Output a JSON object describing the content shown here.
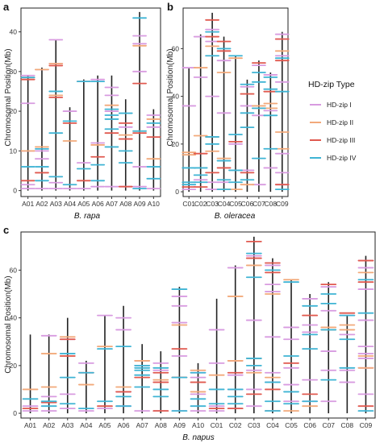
{
  "colors": {
    "HD-zip I": "#d89be0",
    "HD-zip II": "#f2a97a",
    "HD-zip III": "#e0594f",
    "HD-zip IV": "#3fb4d4",
    "chromosome": "#222222",
    "panel_bg": "#ffffff",
    "panel_border": "#222222"
  },
  "legend": {
    "title": "HD-zip Type",
    "items": [
      "HD-zip I",
      "HD-zip II",
      "HD-zip III",
      "HD-zip IV"
    ]
  },
  "chart_data": [
    {
      "panel": "a",
      "type": "chromosome-map",
      "xlabel": "B. rapa",
      "ylabel": "Chromosomal Position(Mb)",
      "ylim": [
        -1.5,
        46
      ],
      "yticks": [
        0,
        10,
        20,
        30,
        40
      ],
      "categories": [
        "A01",
        "A02",
        "A03",
        "A04",
        "A05",
        "A06",
        "A07",
        "A08",
        "A09",
        "A10"
      ],
      "lengths": [
        29,
        31,
        38,
        21,
        28,
        29,
        29,
        23,
        45,
        20.5
      ],
      "genes": {
        "HD-zip I": [
          [
            0.5,
            1.5,
            10,
            22,
            29
          ],
          [
            0.5,
            8,
            10,
            30.5
          ],
          [
            0.5,
            2,
            32,
            38
          ],
          [
            0.5,
            20
          ],
          [
            0.5,
            7,
            27.5
          ],
          [
            1,
            12,
            28
          ],
          [
            1,
            20,
            24,
            26
          ],
          [
            1,
            16
          ],
          [
            1,
            6,
            30,
            37,
            39
          ],
          [
            0.5,
            16,
            19
          ]
        ],
        "HD-zip II": [
          [
            10,
            28.5
          ],
          [
            11,
            30.5
          ],
          [
            24,
            32
          ],
          [
            12.5
          ],
          [
            27.5
          ],
          [
            11.5
          ],
          [
            21.5
          ],
          [
            14
          ],
          [
            15,
            36.5
          ],
          [
            8,
            18
          ]
        ],
        "HD-zip III": [
          [
            2.5,
            28
          ],
          [
            4.5
          ],
          [
            23.5,
            31.5
          ],
          [
            17
          ],
          [
            2.5
          ],
          [
            8.5
          ],
          [
            14.5
          ],
          [
            1,
            13,
            17
          ],
          [
            14.5,
            27
          ],
          [
            13.5
          ]
        ],
        "HD-zip IV": [
          [
            6,
            28.5
          ],
          [
            2.5,
            6,
            10.5
          ],
          [
            3.5,
            14.5,
            25
          ],
          [
            1.5,
            17.5
          ],
          [
            5.5,
            27.5
          ],
          [
            2.5,
            6.5,
            27.5
          ],
          [
            11,
            15.5,
            18,
            19,
            20.5
          ],
          [
            7,
            10,
            19.5
          ],
          [
            0.5,
            15,
            43.5
          ],
          [
            3,
            6,
            17
          ]
        ]
      }
    },
    {
      "panel": "b",
      "type": "chromosome-map",
      "xlabel": "B. oleracea",
      "ylabel": "Chromosomal Position(Mb)",
      "ylim": [
        -2,
        77
      ],
      "yticks": [
        0,
        20,
        40,
        60
      ],
      "categories": [
        "C01",
        "C02",
        "C03",
        "C04",
        "C05",
        "C06",
        "C07",
        "C08",
        "C09"
      ],
      "lengths": [
        52,
        66,
        75,
        65,
        57,
        47,
        55,
        50,
        67
      ],
      "genes": {
        "HD-zip I": [
          [
            1,
            36,
            52
          ],
          [
            5,
            48,
            65
          ],
          [
            1,
            4,
            40,
            63,
            68
          ],
          [
            4,
            33,
            55
          ],
          [
            20
          ],
          [
            9,
            36,
            44
          ],
          [
            3,
            32,
            53
          ],
          [
            10,
            34,
            49
          ],
          [
            3,
            8,
            16,
            46,
            57,
            64,
            66
          ]
        ],
        "HD-zip II": [
          [
            15.5,
            16.5
          ],
          [
            23.5,
            52
          ],
          [
            17,
            23,
            61
          ],
          [
            1,
            14,
            50
          ],
          [
            1,
            56
          ],
          [
            3,
            41
          ],
          [
            35,
            36
          ],
          [
            35,
            37
          ],
          [
            18,
            25,
            59
          ]
        ],
        "HD-zip III": [
          [
            2
          ],
          [
            2,
            16
          ],
          [
            8,
            65,
            72
          ],
          [
            10,
            59,
            63
          ],
          [
            21
          ],
          [
            8,
            41
          ],
          [
            54
          ],
          [
            42
          ],
          [
            3,
            55,
            64
          ]
        ],
        "HD-zip IV": [
          [
            3,
            4,
            10
          ],
          [
            4,
            7,
            10
          ],
          [
            20,
            23,
            57,
            67
          ],
          [
            1,
            5,
            13,
            60
          ],
          [
            4,
            9,
            24,
            57
          ],
          [
            5,
            27,
            33,
            45
          ],
          [
            14,
            35,
            46,
            50
          ],
          [
            18,
            32,
            43,
            48
          ],
          [
            1,
            42,
            56
          ]
        ]
      }
    },
    {
      "panel": "c",
      "type": "chromosome-map",
      "xlabel": "B. napus",
      "ylabel": "Chromosomal Position(Mb)",
      "ylim": [
        -2,
        76
      ],
      "yticks": [
        0,
        20,
        40,
        60
      ],
      "categories": [
        "A01",
        "A02",
        "A03",
        "A04",
        "A05",
        "A06",
        "A07",
        "A08",
        "A09",
        "A10",
        "C01",
        "C02",
        "C03",
        "C04",
        "C05",
        "C06",
        "C07",
        "C08",
        "C09"
      ],
      "lengths": [
        33,
        33,
        40,
        22,
        41,
        45,
        29,
        26,
        53,
        21,
        48,
        62,
        74,
        65,
        56,
        50,
        55,
        41,
        66
      ],
      "genes": {
        "HD-zip I": [
          [
            1,
            3
          ],
          [
            1,
            7,
            32.5
          ],
          [
            2,
            8,
            31
          ],
          [
            1,
            21
          ],
          [
            2,
            41
          ],
          [
            3,
            9,
            35,
            40
          ],
          [
            1,
            20,
            22
          ],
          [
            1,
            18,
            21
          ],
          [
            1,
            24,
            38,
            45,
            49
          ],
          [
            1,
            8,
            15,
            17
          ],
          [
            1,
            3,
            21,
            35
          ],
          [
            2,
            10,
            16,
            22,
            61
          ],
          [
            3,
            10,
            18,
            39,
            66
          ],
          [
            1,
            13,
            17,
            32,
            51,
            54,
            62
          ],
          [
            5,
            12,
            19,
            31,
            36
          ],
          [
            5,
            14,
            34,
            37,
            48
          ],
          [
            5,
            18,
            26,
            43,
            53
          ],
          [
            13,
            18,
            33,
            41
          ],
          [
            8,
            19,
            23,
            25,
            28,
            39,
            52,
            61,
            64
          ]
        ],
        "HD-zip II": [
          [
            10
          ],
          [
            11,
            25
          ],
          [
            24,
            32
          ],
          [
            12
          ],
          [
            28
          ],
          [
            11
          ],
          [
            22
          ],
          [
            14
          ],
          [
            15,
            37
          ],
          [
            9,
            18
          ],
          [
            16
          ],
          [
            22,
            49
          ],
          [
            17,
            23,
            62
          ],
          [
            1,
            15,
            50
          ],
          [
            1,
            56
          ],
          [
            3,
            41
          ],
          [
            35,
            36
          ],
          [
            35,
            37
          ],
          [
            19,
            24,
            59
          ]
        ],
        "HD-zip III": [
          [
            2
          ],
          [
            4.5
          ],
          [
            24,
            31
          ],
          [
            17
          ],
          [
            3
          ],
          [
            9
          ],
          [
            15
          ],
          [
            1,
            13,
            17
          ],
          [
            15,
            27
          ],
          [
            13
          ],
          [
            2
          ],
          [
            2,
            17
          ],
          [
            8,
            65,
            72
          ],
          [
            10,
            59,
            63
          ],
          [
            21
          ],
          [
            8,
            41
          ],
          [
            54
          ],
          [
            42
          ],
          [
            3,
            55,
            64
          ]
        ],
        "HD-zip IV": [
          [
            6
          ],
          [
            3,
            5
          ],
          [
            4,
            15,
            25
          ],
          [
            2,
            17
          ],
          [
            5,
            27
          ],
          [
            3,
            7,
            28
          ],
          [
            11,
            16,
            18,
            19,
            20
          ],
          [
            7,
            10,
            19
          ],
          [
            1,
            15,
            52
          ],
          [
            3,
            6,
            17
          ],
          [
            4,
            10
          ],
          [
            4,
            7,
            10
          ],
          [
            20,
            23,
            57,
            67
          ],
          [
            1,
            5,
            13,
            60
          ],
          [
            4,
            9,
            24,
            55
          ],
          [
            5,
            27,
            33,
            45
          ],
          [
            14,
            35,
            46,
            50
          ],
          [
            19,
            31,
            41
          ],
          [
            1,
            42,
            56
          ]
        ]
      }
    }
  ]
}
